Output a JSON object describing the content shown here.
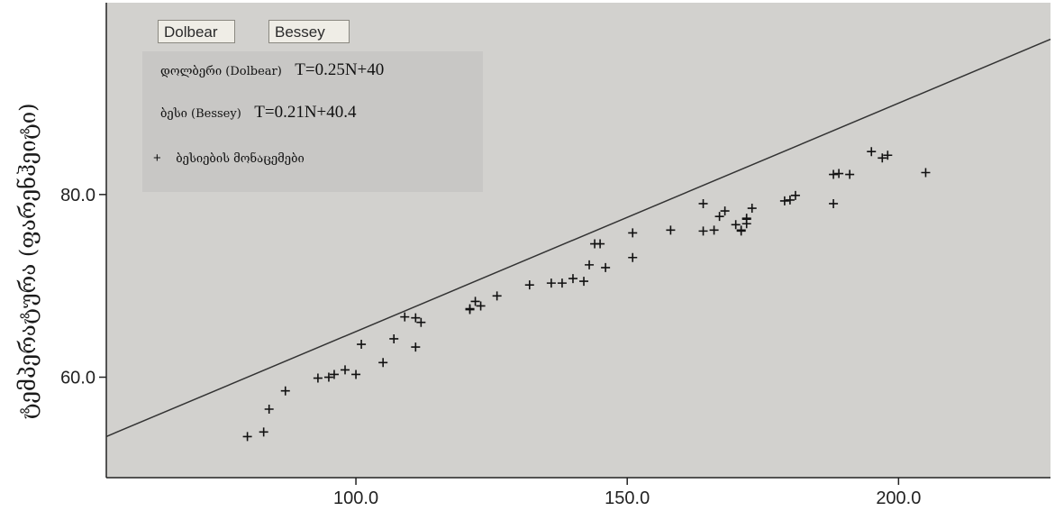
{
  "buttons": {
    "dolbear": "Dolbear",
    "bessey": "Bessey"
  },
  "legend": {
    "entries": [
      {
        "name": "დოლბერი (Dolbear)",
        "equation": "T=0.25N+40"
      },
      {
        "name": "ბესი (Bessey)",
        "equation": "T=0.21N+40.4"
      }
    ],
    "data_label": "ბესიების მონაცემები",
    "marker": "+"
  },
  "chart_data": {
    "type": "scatter",
    "title": "",
    "xlabel": "",
    "ylabel": "ტემპერატურა (ფარენჰეიტი)",
    "xlim": [
      54,
      228
    ],
    "ylim": [
      49,
      101
    ],
    "x_ticks": [
      100,
      150,
      200
    ],
    "x_tick_labels": [
      "100.0",
      "150.0",
      "200.0"
    ],
    "y_ticks": [
      60,
      80
    ],
    "y_tick_labels": [
      "60.0",
      "80.0"
    ],
    "lines": [
      {
        "name": "დოლბერი (Dolbear)",
        "slope": 0.25,
        "intercept": 40,
        "x_range": [
          54,
          228
        ]
      }
    ],
    "points": {
      "x": [
        80,
        83,
        84,
        87,
        93,
        95,
        96,
        98,
        100,
        101,
        105,
        107,
        109,
        111,
        111,
        112,
        121,
        121,
        122,
        123,
        126,
        132,
        136,
        138,
        140,
        142,
        143,
        144,
        145,
        146,
        151,
        151,
        158,
        164,
        164,
        166,
        167,
        168,
        170,
        171,
        171,
        172,
        172,
        172,
        173,
        179,
        180,
        181,
        188,
        188,
        189,
        191,
        195,
        197,
        198,
        205
      ],
      "y": [
        53.5,
        54,
        56.5,
        58.5,
        59.9,
        60,
        60.3,
        60.8,
        60.3,
        63.6,
        61.6,
        64.2,
        66.6,
        63.3,
        66.5,
        66,
        67.4,
        67.5,
        68.3,
        67.8,
        68.9,
        70.1,
        70.3,
        70.3,
        70.8,
        70.5,
        72.3,
        74.6,
        74.6,
        72,
        73.1,
        75.8,
        76.1,
        76,
        79,
        76.1,
        77.6,
        78.2,
        76.7,
        76.1,
        76,
        76.8,
        77.4,
        77.3,
        78.5,
        79.3,
        79.4,
        79.9,
        79,
        82.2,
        82.3,
        82.2,
        84.7,
        84,
        84.3,
        82.4
      ]
    },
    "grid": false,
    "legend_position": "top-left"
  }
}
